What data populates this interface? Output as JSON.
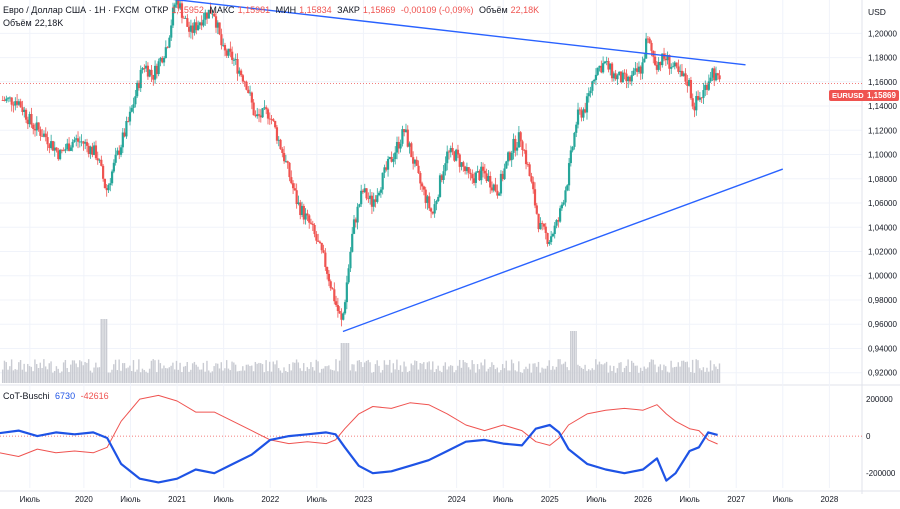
{
  "legend": {
    "symbol_desc": "Евро / Доллар США · 1Н · FXCM",
    "open_label": "ОТКР",
    "open_value": "1,15952",
    "high_label": "МАКС",
    "high_value": "1,15981",
    "low_label": "МИН",
    "low_value": "1,15834",
    "close_label": "ЗАКР",
    "close_value": "1,15869",
    "change": "-0,00109 (-0,09%)",
    "volume_label": "Объём",
    "volume_value": "22,18K",
    "volume_row_label": "Объём",
    "volume_row_value": "22,18K"
  },
  "currency_label": "USD",
  "symbol_tag": "EURUSD",
  "last_price": "1,15869",
  "indicator": {
    "name": "CoT-Buschi",
    "value_blue": "6730",
    "value_red": "-42616"
  },
  "colors": {
    "up": "#26a69a",
    "down": "#ef5350",
    "trendline": "#2962ff",
    "cot_blue": "#1e53e5",
    "cot_red": "#ef5350",
    "volume": "#c9cbd2"
  },
  "chart_data": {
    "type": "candlestick",
    "y_axis_ticks": [
      "1,20000",
      "1,18000",
      "1,16000",
      "1,14000",
      "1,12000",
      "1,10000",
      "1,08000",
      "1,06000",
      "1,04000",
      "1,02000",
      "1,00000",
      "0,98000",
      "0,96000",
      "0,94000",
      "0,92000"
    ],
    "y_range": [
      0.9115,
      1.2275
    ],
    "x_axis_labels": [
      "Июль",
      "2020",
      "Июль",
      "2021",
      "Июль",
      "2022",
      "Июль",
      "2023",
      "2024",
      "Июль",
      "2025",
      "Июль",
      "2026",
      "Июль",
      "2027",
      "Июль",
      "2028"
    ],
    "price_path": [
      [
        2019.3,
        1.145
      ],
      [
        2019.45,
        1.125
      ],
      [
        2019.6,
        1.115
      ],
      [
        2019.75,
        1.1
      ],
      [
        2019.9,
        1.112
      ],
      [
        2020.0,
        1.11
      ],
      [
        2020.15,
        1.1
      ],
      [
        2020.25,
        1.07
      ],
      [
        2020.35,
        1.095
      ],
      [
        2020.5,
        1.13
      ],
      [
        2020.65,
        1.175
      ],
      [
        2020.75,
        1.165
      ],
      [
        2020.9,
        1.19
      ],
      [
        2021.0,
        1.23
      ],
      [
        2021.15,
        1.2
      ],
      [
        2021.3,
        1.215
      ],
      [
        2021.4,
        1.22
      ],
      [
        2021.5,
        1.185
      ],
      [
        2021.6,
        1.18
      ],
      [
        2021.75,
        1.16
      ],
      [
        2021.85,
        1.13
      ],
      [
        2022.0,
        1.135
      ],
      [
        2022.15,
        1.1
      ],
      [
        2022.3,
        1.06
      ],
      [
        2022.45,
        1.04
      ],
      [
        2022.6,
        1.01
      ],
      [
        2022.72,
        0.975
      ],
      [
        2022.78,
        0.96
      ],
      [
        2022.9,
        1.04
      ],
      [
        2023.0,
        1.07
      ],
      [
        2023.1,
        1.06
      ],
      [
        2023.3,
        1.095
      ],
      [
        2023.45,
        1.12
      ],
      [
        2023.6,
        1.08
      ],
      [
        2023.75,
        1.05
      ],
      [
        2023.9,
        1.1
      ],
      [
        2024.0,
        1.1
      ],
      [
        2024.15,
        1.08
      ],
      [
        2024.3,
        1.085
      ],
      [
        2024.45,
        1.07
      ],
      [
        2024.6,
        1.105
      ],
      [
        2024.7,
        1.115
      ],
      [
        2024.8,
        1.08
      ],
      [
        2024.9,
        1.04
      ],
      [
        2025.0,
        1.03
      ],
      [
        2025.1,
        1.045
      ],
      [
        2025.2,
        1.08
      ],
      [
        2025.3,
        1.13
      ],
      [
        2025.4,
        1.14
      ],
      [
        2025.5,
        1.17
      ],
      [
        2025.6,
        1.175
      ],
      [
        2025.7,
        1.165
      ],
      [
        2025.85,
        1.16
      ],
      [
        2026.0,
        1.172
      ],
      [
        2026.05,
        1.195
      ],
      [
        2026.15,
        1.175
      ],
      [
        2026.25,
        1.18
      ],
      [
        2026.4,
        1.165
      ],
      [
        2026.5,
        1.16
      ],
      [
        2026.55,
        1.14
      ],
      [
        2026.65,
        1.15
      ],
      [
        2026.75,
        1.17
      ],
      [
        2026.82,
        1.159
      ]
    ],
    "trendlines": [
      {
        "name": "resistance",
        "from": [
          2020.85,
          1.229
        ],
        "to": [
          2027.1,
          1.174
        ]
      },
      {
        "name": "support",
        "from": [
          2022.78,
          0.954
        ],
        "to": [
          2027.5,
          1.088
        ]
      }
    ],
    "indicator_axis_ticks": [
      "200000",
      "0",
      "-200000"
    ],
    "indicator_range": [
      -280000,
      260000
    ],
    "cot_blue_path": [
      [
        2019.0,
        10000
      ],
      [
        2019.3,
        30000
      ],
      [
        2019.5,
        0
      ],
      [
        2019.7,
        20000
      ],
      [
        2019.9,
        10000
      ],
      [
        2020.1,
        20000
      ],
      [
        2020.25,
        -10000
      ],
      [
        2020.4,
        -150000
      ],
      [
        2020.6,
        -230000
      ],
      [
        2020.8,
        -250000
      ],
      [
        2021.0,
        -230000
      ],
      [
        2021.2,
        -180000
      ],
      [
        2021.4,
        -200000
      ],
      [
        2021.6,
        -150000
      ],
      [
        2021.8,
        -100000
      ],
      [
        2022.0,
        -20000
      ],
      [
        2022.2,
        0
      ],
      [
        2022.4,
        10000
      ],
      [
        2022.6,
        20000
      ],
      [
        2022.7,
        10000
      ],
      [
        2022.8,
        -60000
      ],
      [
        2022.95,
        -160000
      ],
      [
        2023.1,
        -200000
      ],
      [
        2023.3,
        -190000
      ],
      [
        2023.5,
        -160000
      ],
      [
        2023.7,
        -130000
      ],
      [
        2023.9,
        -80000
      ],
      [
        2024.1,
        -30000
      ],
      [
        2024.3,
        -20000
      ],
      [
        2024.5,
        -40000
      ],
      [
        2024.7,
        -50000
      ],
      [
        2024.85,
        40000
      ],
      [
        2025.0,
        60000
      ],
      [
        2025.1,
        20000
      ],
      [
        2025.2,
        -70000
      ],
      [
        2025.4,
        -150000
      ],
      [
        2025.6,
        -180000
      ],
      [
        2025.8,
        -200000
      ],
      [
        2026.0,
        -180000
      ],
      [
        2026.15,
        -120000
      ],
      [
        2026.25,
        -240000
      ],
      [
        2026.35,
        -200000
      ],
      [
        2026.5,
        -80000
      ],
      [
        2026.6,
        -60000
      ],
      [
        2026.7,
        20000
      ],
      [
        2026.8,
        6730
      ]
    ],
    "cot_red_path": [
      [
        2019.0,
        -80000
      ],
      [
        2019.3,
        -110000
      ],
      [
        2019.5,
        -70000
      ],
      [
        2019.7,
        -90000
      ],
      [
        2019.9,
        -80000
      ],
      [
        2020.1,
        -90000
      ],
      [
        2020.25,
        -60000
      ],
      [
        2020.4,
        80000
      ],
      [
        2020.6,
        200000
      ],
      [
        2020.8,
        220000
      ],
      [
        2021.0,
        190000
      ],
      [
        2021.2,
        130000
      ],
      [
        2021.4,
        130000
      ],
      [
        2021.6,
        80000
      ],
      [
        2021.8,
        30000
      ],
      [
        2022.0,
        -20000
      ],
      [
        2022.2,
        -40000
      ],
      [
        2022.4,
        -30000
      ],
      [
        2022.6,
        -40000
      ],
      [
        2022.7,
        -20000
      ],
      [
        2022.8,
        40000
      ],
      [
        2022.95,
        120000
      ],
      [
        2023.1,
        160000
      ],
      [
        2023.3,
        150000
      ],
      [
        2023.5,
        180000
      ],
      [
        2023.7,
        170000
      ],
      [
        2023.9,
        120000
      ],
      [
        2024.1,
        60000
      ],
      [
        2024.3,
        30000
      ],
      [
        2024.5,
        60000
      ],
      [
        2024.7,
        30000
      ],
      [
        2024.85,
        -30000
      ],
      [
        2025.0,
        -50000
      ],
      [
        2025.1,
        -10000
      ],
      [
        2025.2,
        60000
      ],
      [
        2025.4,
        120000
      ],
      [
        2025.6,
        140000
      ],
      [
        2025.8,
        150000
      ],
      [
        2026.0,
        140000
      ],
      [
        2026.15,
        170000
      ],
      [
        2026.25,
        120000
      ],
      [
        2026.35,
        80000
      ],
      [
        2026.5,
        40000
      ],
      [
        2026.6,
        30000
      ],
      [
        2026.7,
        -20000
      ],
      [
        2026.8,
        -42616
      ]
    ]
  }
}
